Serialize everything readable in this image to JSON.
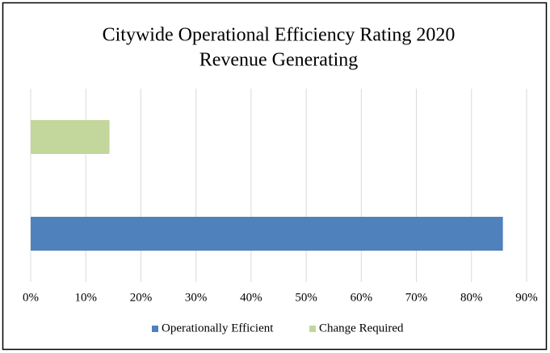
{
  "chart_data": {
    "type": "hbar",
    "title": "Citywide Operational Efficiency Rating 2020",
    "subtitle": "Revenue Generating",
    "categories": [
      null
    ],
    "series": [
      {
        "name": "Operationally Efficient",
        "color": "#4f81bd",
        "values": [
          85.7
        ]
      },
      {
        "name": "Change Required",
        "color": "#c3d69b",
        "values": [
          14.3
        ]
      }
    ],
    "xlim": [
      0,
      90
    ],
    "xticks": [
      {
        "value": 0,
        "label": "0%"
      },
      {
        "value": 10,
        "label": "10%"
      },
      {
        "value": 20,
        "label": "20%"
      },
      {
        "value": 30,
        "label": "30%"
      },
      {
        "value": 40,
        "label": "40%"
      },
      {
        "value": 50,
        "label": "50%"
      },
      {
        "value": 60,
        "label": "60%"
      },
      {
        "value": 70,
        "label": "70%"
      },
      {
        "value": 80,
        "label": "80%"
      },
      {
        "value": 90,
        "label": "90%"
      }
    ],
    "grid": true,
    "legend": "bottom"
  }
}
